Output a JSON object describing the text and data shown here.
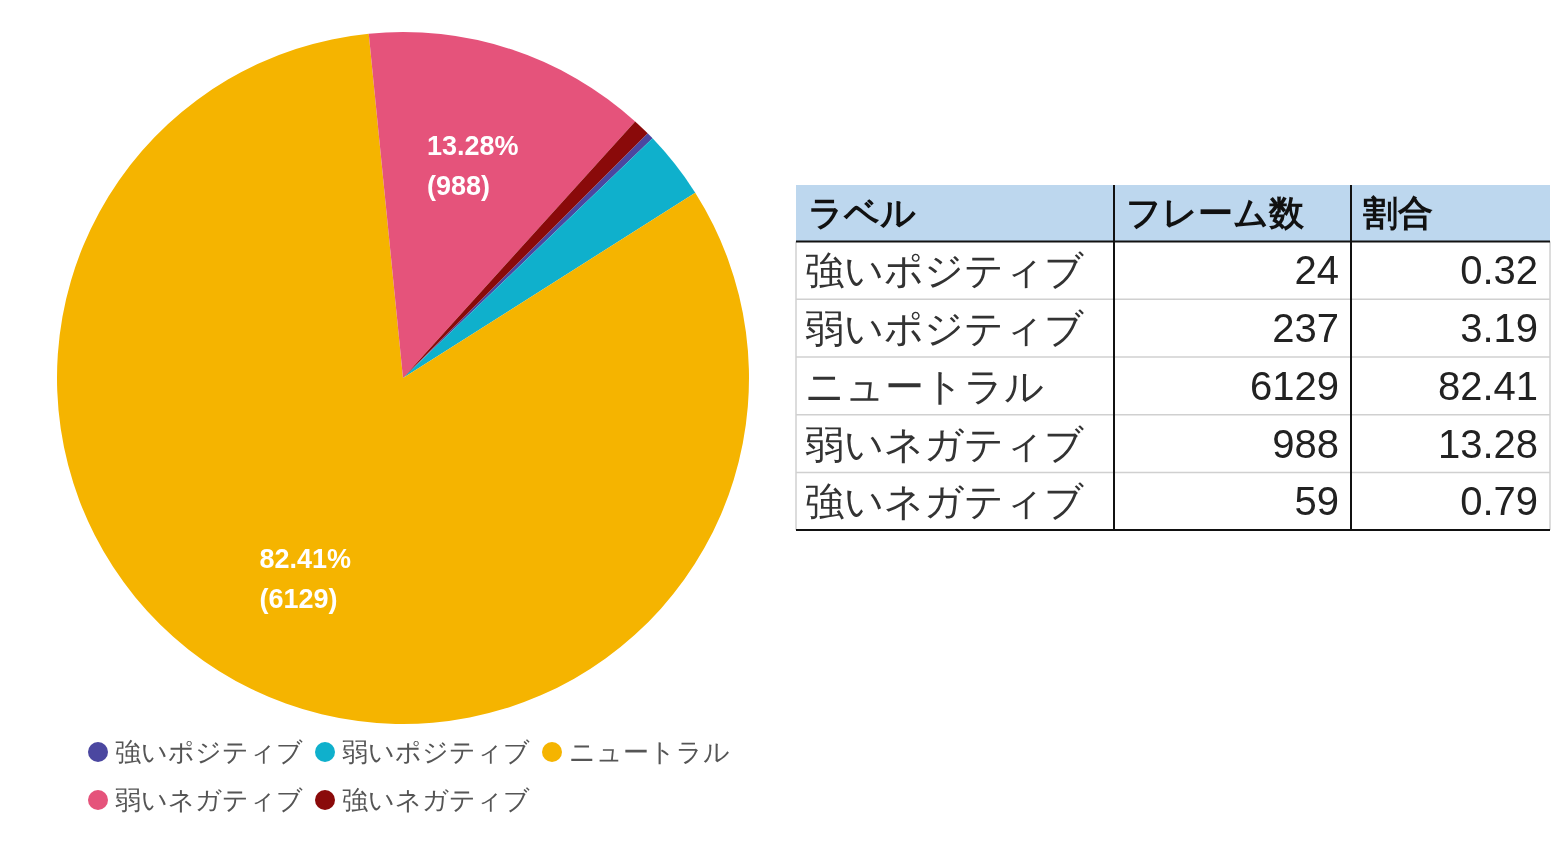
{
  "chart_data": [
    {
      "type": "pie",
      "categories": [
        "強いポジティブ",
        "弱いポジティブ",
        "ニュートラル",
        "弱いネガティブ",
        "強いネガティブ"
      ],
      "values": [
        24,
        237,
        6129,
        988,
        59
      ],
      "colors": [
        "#4b47a0",
        "#0fb0cc",
        "#f5b400",
        "#e5537b",
        "#8a0a0a"
      ],
      "value_labels": [
        null,
        null,
        "82.41%\n(6129)",
        "13.28%\n(988)",
        null
      ],
      "legend": "bottom"
    },
    {
      "type": "other",
      "ylabel": "ラベル",
      "categories": [
        "強いポジティブ",
        "弱いポジティブ",
        "ニュートラル",
        "弱いネガティブ",
        "強いネガティブ"
      ],
      "series": [
        {
          "name": "フレーム数",
          "values": [
            24,
            237,
            6129,
            988,
            59
          ]
        },
        {
          "name": "割合",
          "values": [
            0.32,
            3.19,
            82.41,
            13.28,
            0.79
          ]
        }
      ],
      "data_labels": true
    }
  ]
}
